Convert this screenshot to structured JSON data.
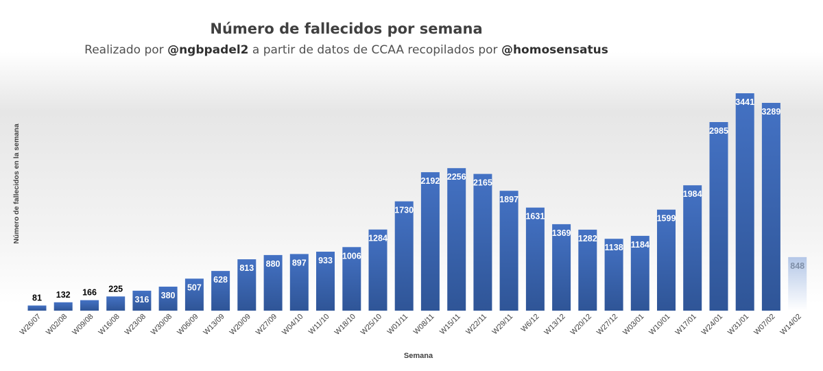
{
  "chart_data": {
    "type": "bar",
    "title": "Número de fallecidos por semana",
    "subtitle": {
      "prefix": "Realizado por ",
      "author": "@ngbpadel2",
      "middle": " a partir de datos de CCAA recopilados por ",
      "source": "@homosensatus"
    },
    "xlabel": "Semana",
    "ylabel": "Número de fallecidos en la semana",
    "categories": [
      "W26/07",
      "W02/08",
      "W09/08",
      "W16/08",
      "W23/08",
      "W30/08",
      "W06/09",
      "W13/09",
      "W20/09",
      "W27/09",
      "W04/10",
      "W11/10",
      "W18/10",
      "W25/10",
      "W01/11",
      "W08/11",
      "W15/11",
      "W22/11",
      "W29/11",
      "W6/12",
      "W13/12",
      "W20/12",
      "W27/12",
      "W03/01",
      "W10/01",
      "W17/01",
      "W24/01",
      "W31/01",
      "W07/02",
      "W14/02"
    ],
    "values": [
      81,
      132,
      166,
      225,
      316,
      380,
      507,
      628,
      813,
      880,
      897,
      933,
      1006,
      1284,
      1730,
      2192,
      2256,
      2165,
      1897,
      1631,
      1369,
      1282,
      1138,
      1184,
      1599,
      1984,
      2985,
      3441,
      3289,
      848
    ],
    "ylim": [
      0,
      3441
    ],
    "grid": false,
    "legend": "none",
    "colors": {
      "bar_top": "#4472c4",
      "bar_bottom": "#2f5597",
      "last_bar_top": "#b4c7e7",
      "last_bar_bottom": "#ffffff",
      "inside_label": "#ffffff",
      "outside_label": "#000000",
      "axis_text": "#404040"
    }
  }
}
